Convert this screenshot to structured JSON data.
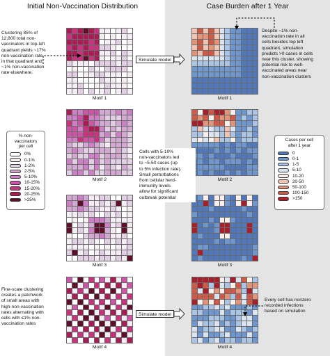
{
  "titles": {
    "left": "Initial Non-Vaccination Distribution",
    "right": "Case Burden after 1 Year"
  },
  "motifs": [
    {
      "label": "Motif 1"
    },
    {
      "label": "Motif 2"
    },
    {
      "label": "Motif 3"
    },
    {
      "label": "Motif 4"
    }
  ],
  "notes": {
    "left_top": "Clustering 85% of\n12,800 total non-\nvaccinators in top-left\nquadrant yields ~17%\nnon-vaccination rate\nin that quadrant and\n~1% non-vaccination\nrate elsewhere.",
    "right_top": "Despite ~1% non-\nvaccination rate in all\ncells besides top left\nquadrant, simulation\npredicts >0 cases in cells\nnear this cluster, showing\npotential risk to well-\nvaccinated areas near\nnon-vaccination clusters",
    "middle": "Cells with 5-10%\nnon-vaccinators led\nto ~5-50 cases (up\nto 5% infection rate).\nSmall perturbations\nfrom cellular herd-\nimmunity levels\nallow for significant\noutbreak potential",
    "left_bottom": "Fine-scale clustering\ncreates a patchwork\nof small areas with\nhigh-non-vaccination\nrates alternating with\ncells with ≤1% non-\nvaccination rates",
    "right_bottom": "Every cell has nonzero\nrecorded infections\nbased on simulation"
  },
  "buttons": {
    "simulate_top": "Simulate model",
    "simulate_bottom": "Simulate model"
  },
  "legend_left": {
    "title": "% non-\nvaccinators\nper cell",
    "items": [
      {
        "label": "0%",
        "color": "#ffffff"
      },
      {
        "label": "0-1%",
        "color": "#f4eef4"
      },
      {
        "label": "1-2%",
        "color": "#e3cfe3"
      },
      {
        "label": "2-5%",
        "color": "#d3a9d4"
      },
      {
        "label": "5-10%",
        "color": "#cf7fc6"
      },
      {
        "label": "10-15%",
        "color": "#cd55a8"
      },
      {
        "label": "15-20%",
        "color": "#c8337e"
      },
      {
        "label": "20-25%",
        "color": "#a81d55"
      },
      {
        "label": ">25%",
        "color": "#5e0f2a"
      }
    ]
  },
  "legend_right": {
    "title": "Cases per cell\nafter 1 year",
    "items": [
      {
        "label": "0",
        "color": "#4f78bd"
      },
      {
        "label": "0-1",
        "color": "#6e97cf"
      },
      {
        "label": "1-5",
        "color": "#a9c4e4"
      },
      {
        "label": "5-10",
        "color": "#dbe5f1"
      },
      {
        "label": "10-20",
        "color": "#fbf0ec"
      },
      {
        "label": "20-50",
        "color": "#f1c3b2"
      },
      {
        "label": "50-100",
        "color": "#e39478"
      },
      {
        "label": "100-150",
        "color": "#cf5a47"
      },
      {
        "label": ">150",
        "color": "#a61f2b"
      }
    ]
  }
}
